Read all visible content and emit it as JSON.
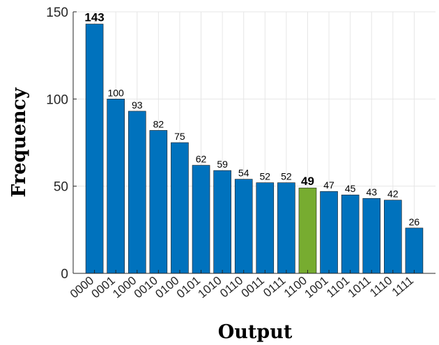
{
  "chart_data": {
    "type": "bar",
    "title": "",
    "xlabel": "Output",
    "ylabel": "Frequency",
    "ylim": [
      0,
      150
    ],
    "yticks": [
      0,
      50,
      100,
      150
    ],
    "grid": true,
    "categories": [
      "0000",
      "0001",
      "1000",
      "0010",
      "0100",
      "0101",
      "1010",
      "0110",
      "0011",
      "0111",
      "1100",
      "1001",
      "1101",
      "1011",
      "1110",
      "1111"
    ],
    "values": [
      143,
      100,
      93,
      82,
      75,
      62,
      59,
      54,
      52,
      52,
      49,
      47,
      45,
      43,
      42,
      26
    ],
    "bold_labels": [
      "0000",
      "1100"
    ],
    "highlight_category": "1100",
    "colors": {
      "bar": "#0072BD",
      "highlight": "#77AC30",
      "grid": "#e6e6e6",
      "axis": "#262626"
    }
  }
}
